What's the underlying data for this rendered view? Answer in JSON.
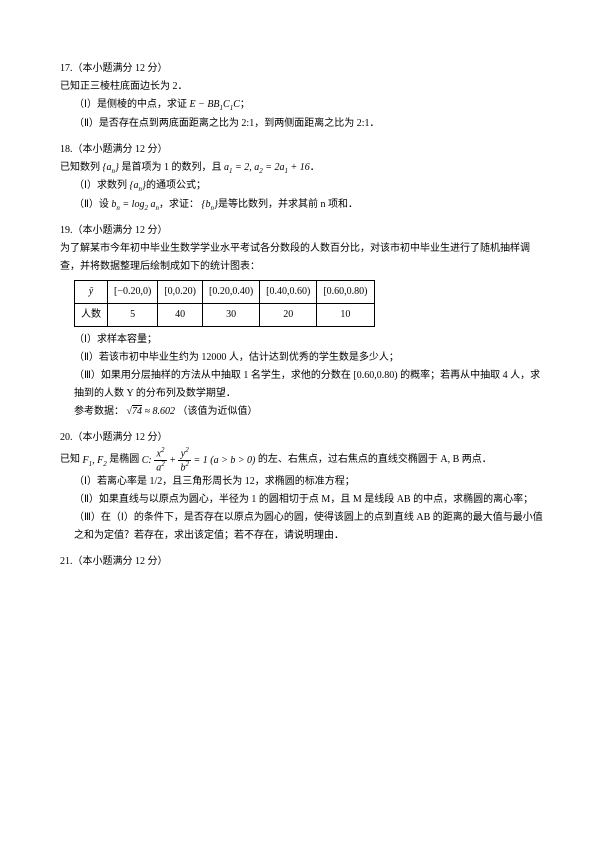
{
  "q17": {
    "num": "17.（本小题满分 12 分）",
    "stem1": "已知正三棱柱底面边长为 2．",
    "p1_label": "（Ⅰ）",
    "p1_text": "是侧棱的中点，求证",
    "p1_formula": "E − BB₁C₁C",
    "p1_tail": "；",
    "p2_label": "（Ⅱ）",
    "p2_text": "是否存在点到两底面距离之比为 2:1，到两侧面距离之比为 2:1．"
  },
  "q18": {
    "num": "18.（本小题满分 12 分）",
    "stem1": "已知数列",
    "seq": "{aₙ}",
    "stem2": "是首项为 1 的数列，且",
    "rec": "a₁ = 2, a₂ = 2a₁ + 16",
    "stem3": "．",
    "p1_label": "（Ⅰ）",
    "p1_text": "求数列",
    "p1_seq": "{aₙ}",
    "p1_tail": "的通项公式；",
    "p2_label": "（Ⅱ）",
    "p2_text": "设",
    "p2_formula": "bₙ = log₂ aₙ",
    "p2_mid": "，求证：",
    "p2_seq": "{bₙ}",
    "p2_tail": "是等比数列，并求其前 n 项和．"
  },
  "q19": {
    "num": "19.（本小题满分 12 分）",
    "stem": "为了解某市今年初中毕业生数学学业水平考试各分数段的人数百分比，对该市初中毕业生进行了随机抽样调查，并将数据整理后绘制成如下的统计图表：",
    "ylabel": "ŷ",
    "headers": [
      "[−0.20,0)",
      "[0,0.20)",
      "[0.20,0.40)",
      "[0.40,0.60)",
      "[0.60,0.80)"
    ],
    "rowlabel": "人数",
    "row": [
      "5",
      "40",
      "30",
      "20",
      "10"
    ],
    "p1_label": "（Ⅰ）",
    "p1_text": "求样本容量；",
    "p2_label": "（Ⅱ）",
    "p2_text": "若该市初中毕业生约为 12000 人，估计达到优秀的学生数是多少人；",
    "p3_label": "（Ⅲ）",
    "p3_text": "如果用分层抽样的方法从中抽取 1 名学生，求他的分数在 [0.60,0.80) 的概率；若再从中抽取 4 人，求抽到的人数 Y 的分布列及数学期望．",
    "hint_label": "参考数据：",
    "hint_formula": "√74 ≈ 8.602",
    "hint_tail": "（该值为近似值）"
  },
  "q20": {
    "num": "20.（本小题满分 12 分）",
    "stem1": "已知",
    "foci": "F₁, F₂",
    "stem2": "是椭圆",
    "ellipse_def": "C: x²/a² + y²/b² = 1 (a > b > 0)",
    "stem3": "的左、右焦点，过右焦点的直线交椭圆于 A, B 两点．",
    "p1_label": "（Ⅰ）",
    "p1_text": "若离心率是 1/2，且三角形周长为 12，求椭圆的标准方程；",
    "p2_label": "（Ⅱ）",
    "p2_text": "如果直线与以原点为圆心，半径为 1 的圆相切于点 M，且 M 是线段 AB 的中点，求椭圆的离心率；",
    "p3_label": "（Ⅲ）",
    "p3_text": "在（Ⅰ）的条件下，是否存在以原点为圆心的圆，使得该圆上的点到直线 AB 的距离的最大值与最小值之和为定值？若存在，求出该定值；若不存在，请说明理由．"
  },
  "q21": {
    "num": "21.（本小题满分 12 分）"
  }
}
